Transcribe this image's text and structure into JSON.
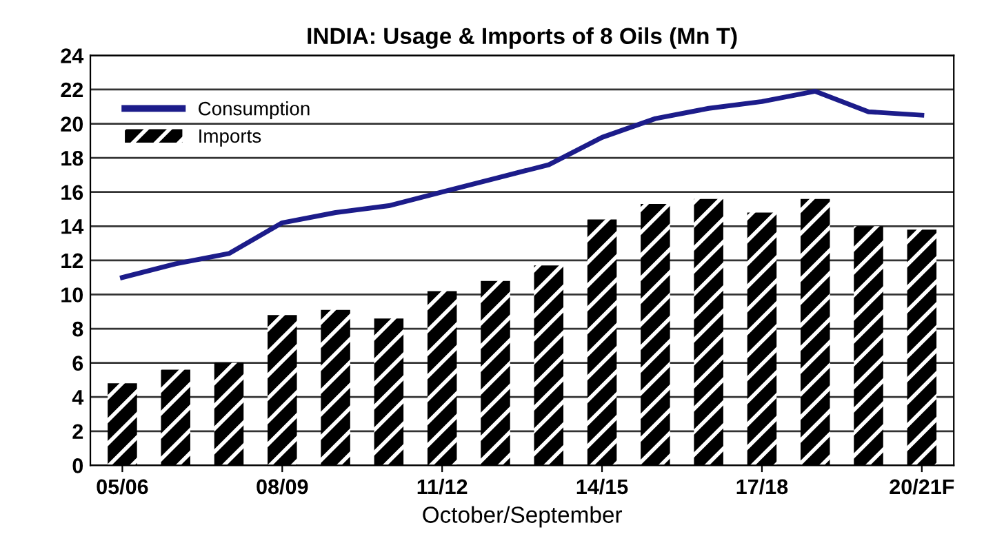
{
  "chart_data": {
    "type": "bar",
    "title": "INDIA: Usage & Imports of 8 Oils (Mn T)",
    "xlabel": "October/September",
    "categories": [
      "05/06",
      null,
      null,
      "08/09",
      null,
      null,
      "11/12",
      null,
      null,
      "14/15",
      null,
      null,
      "17/18",
      null,
      null,
      "20/21F"
    ],
    "series": [
      {
        "name": "Consumption",
        "type": "line",
        "color": "#1c1c8a",
        "values": [
          11.0,
          11.8,
          12.4,
          14.2,
          14.8,
          15.2,
          16.0,
          16.8,
          17.6,
          19.2,
          20.3,
          20.9,
          21.3,
          21.9,
          20.7,
          20.5
        ]
      },
      {
        "name": "Imports",
        "color": "#000000",
        "values": [
          4.8,
          5.6,
          6.0,
          8.8,
          9.1,
          8.6,
          10.2,
          10.8,
          11.7,
          14.4,
          15.3,
          15.6,
          14.8,
          15.6,
          14.0,
          13.8
        ]
      }
    ],
    "ylim": [
      0,
      24
    ],
    "yticks": [
      0,
      2,
      4,
      6,
      8,
      10,
      12,
      14,
      16,
      18,
      20,
      22,
      24
    ],
    "grid": "y",
    "legend": "top left"
  }
}
